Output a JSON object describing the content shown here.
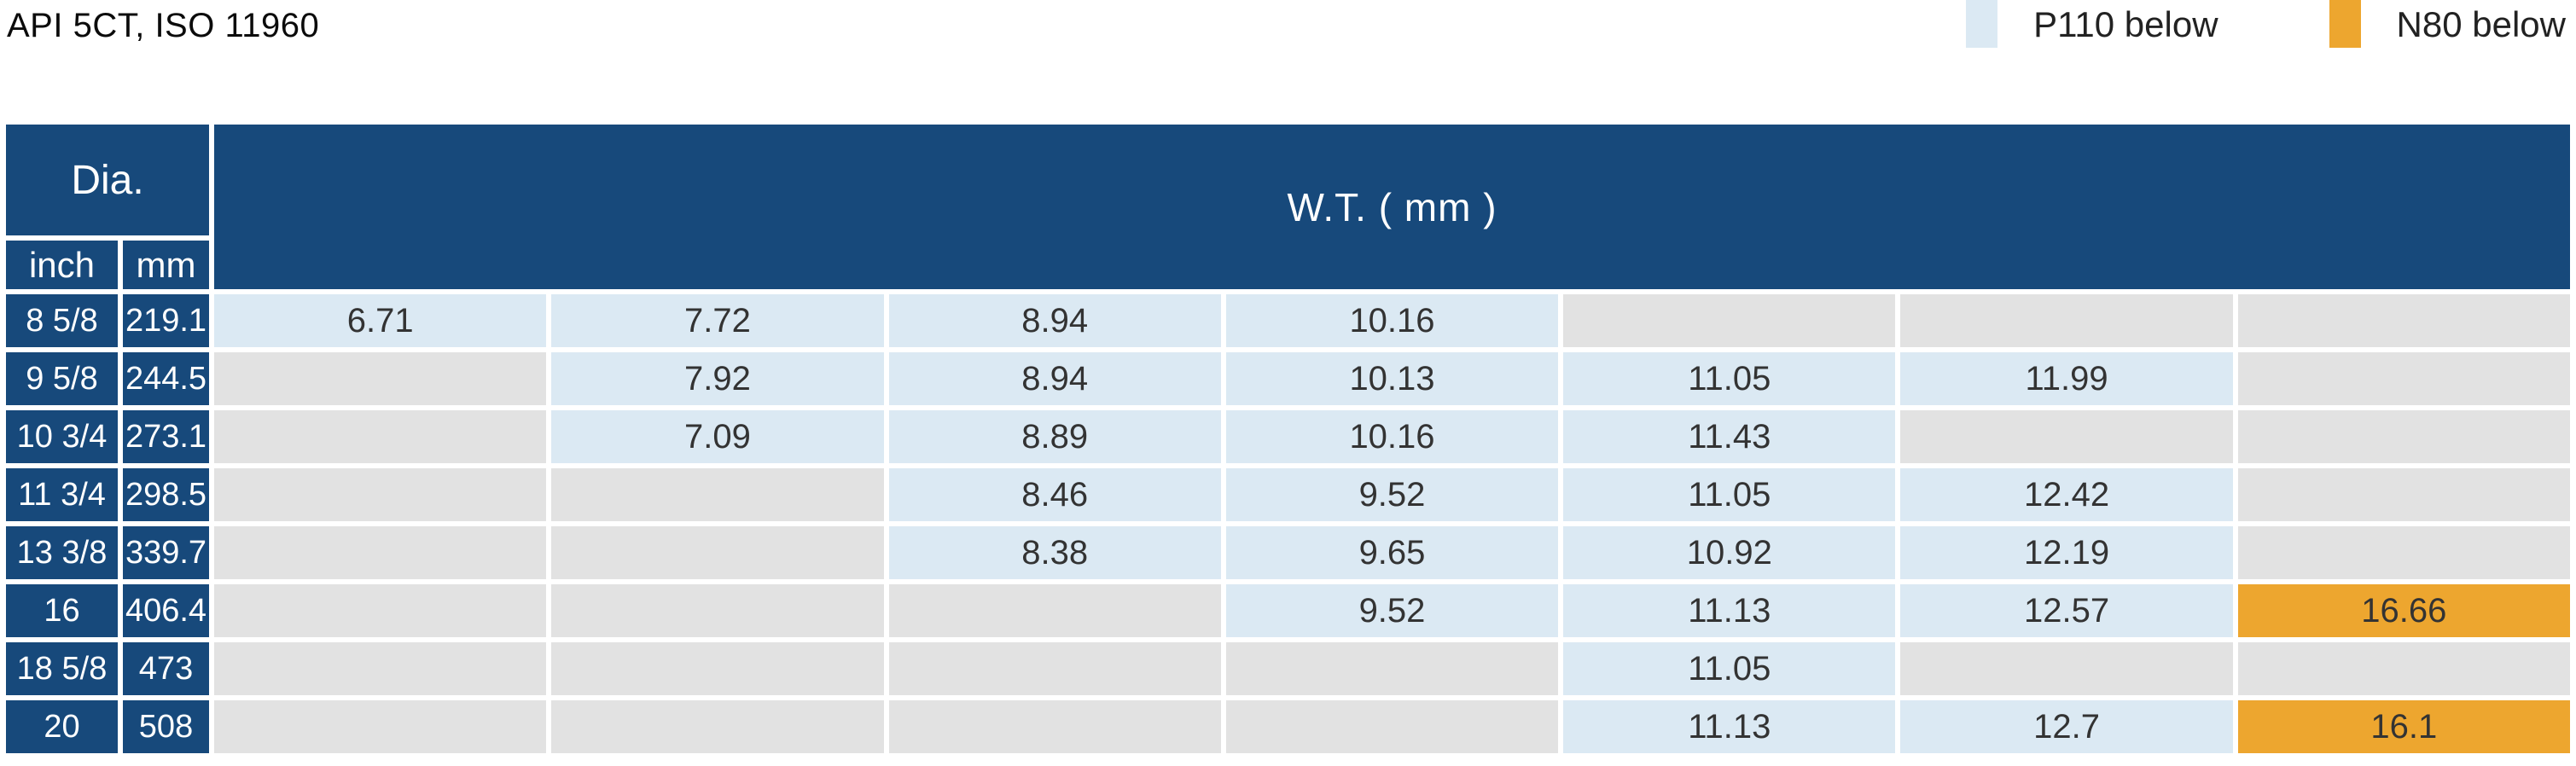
{
  "title": "API 5CT, ISO 11960",
  "legend": {
    "items": [
      {
        "label": "P110 below",
        "color": "#dbe9f3",
        "grade": "p110"
      },
      {
        "label": "N80 below",
        "color": "#eda62f",
        "grade": "n80"
      }
    ]
  },
  "table_headers": {
    "dia": "Dia.",
    "inch": "inch",
    "mm": "mm",
    "wt": "W.T. ( mm )"
  },
  "colors": {
    "navy": "#17497b",
    "p110": "#dbe9f3",
    "n80": "#eda62f",
    "empty": "#e2e2e2",
    "cell_text": "#333333",
    "page_bg": "#ffffff"
  },
  "chart_data": {
    "type": "table",
    "title": "API 5CT, ISO 11960",
    "legend": [
      {
        "label": "P110 below",
        "grade": "p110",
        "color": "#dbe9f3"
      },
      {
        "label": "N80 below",
        "grade": "n80",
        "color": "#eda62f"
      }
    ],
    "columns": {
      "row_header_group": "Dia.",
      "row_headers": [
        "inch",
        "mm"
      ],
      "value_group": "W.T. ( mm )",
      "wt_column_count": 7
    },
    "rows": [
      {
        "dia_inch": "8 5/8",
        "dia_mm": "219.1",
        "wt": [
          {
            "v": "6.71",
            "grade": "p110"
          },
          {
            "v": "7.72",
            "grade": "p110"
          },
          {
            "v": "8.94",
            "grade": "p110"
          },
          {
            "v": "10.16",
            "grade": "p110"
          },
          {
            "v": "",
            "grade": "none"
          },
          {
            "v": "",
            "grade": "none"
          },
          {
            "v": "",
            "grade": "none"
          }
        ]
      },
      {
        "dia_inch": "9 5/8",
        "dia_mm": "244.5",
        "wt": [
          {
            "v": "",
            "grade": "none"
          },
          {
            "v": "7.92",
            "grade": "p110"
          },
          {
            "v": "8.94",
            "grade": "p110"
          },
          {
            "v": "10.13",
            "grade": "p110"
          },
          {
            "v": "11.05",
            "grade": "p110"
          },
          {
            "v": "11.99",
            "grade": "p110"
          },
          {
            "v": "",
            "grade": "none"
          }
        ]
      },
      {
        "dia_inch": "10 3/4",
        "dia_mm": "273.1",
        "wt": [
          {
            "v": "",
            "grade": "none"
          },
          {
            "v": "7.09",
            "grade": "p110"
          },
          {
            "v": "8.89",
            "grade": "p110"
          },
          {
            "v": "10.16",
            "grade": "p110"
          },
          {
            "v": "11.43",
            "grade": "p110"
          },
          {
            "v": "",
            "grade": "none"
          },
          {
            "v": "",
            "grade": "none"
          }
        ]
      },
      {
        "dia_inch": "11 3/4",
        "dia_mm": "298.5",
        "wt": [
          {
            "v": "",
            "grade": "none"
          },
          {
            "v": "",
            "grade": "none"
          },
          {
            "v": "8.46",
            "grade": "p110"
          },
          {
            "v": "9.52",
            "grade": "p110"
          },
          {
            "v": "11.05",
            "grade": "p110"
          },
          {
            "v": "12.42",
            "grade": "p110"
          },
          {
            "v": "",
            "grade": "none"
          }
        ]
      },
      {
        "dia_inch": "13 3/8",
        "dia_mm": "339.7",
        "wt": [
          {
            "v": "",
            "grade": "none"
          },
          {
            "v": "",
            "grade": "none"
          },
          {
            "v": "8.38",
            "grade": "p110"
          },
          {
            "v": "9.65",
            "grade": "p110"
          },
          {
            "v": "10.92",
            "grade": "p110"
          },
          {
            "v": "12.19",
            "grade": "p110"
          },
          {
            "v": "",
            "grade": "none"
          }
        ]
      },
      {
        "dia_inch": "16",
        "dia_mm": "406.4",
        "wt": [
          {
            "v": "",
            "grade": "none"
          },
          {
            "v": "",
            "grade": "none"
          },
          {
            "v": "",
            "grade": "none"
          },
          {
            "v": "9.52",
            "grade": "p110"
          },
          {
            "v": "11.13",
            "grade": "p110"
          },
          {
            "v": "12.57",
            "grade": "p110"
          },
          {
            "v": "16.66",
            "grade": "n80"
          }
        ]
      },
      {
        "dia_inch": "18 5/8",
        "dia_mm": "473",
        "wt": [
          {
            "v": "",
            "grade": "none"
          },
          {
            "v": "",
            "grade": "none"
          },
          {
            "v": "",
            "grade": "none"
          },
          {
            "v": "",
            "grade": "none"
          },
          {
            "v": "11.05",
            "grade": "p110"
          },
          {
            "v": "",
            "grade": "none"
          },
          {
            "v": "",
            "grade": "none"
          }
        ]
      },
      {
        "dia_inch": "20",
        "dia_mm": "508",
        "wt": [
          {
            "v": "",
            "grade": "none"
          },
          {
            "v": "",
            "grade": "none"
          },
          {
            "v": "",
            "grade": "none"
          },
          {
            "v": "",
            "grade": "none"
          },
          {
            "v": "11.13",
            "grade": "p110"
          },
          {
            "v": "12.7",
            "grade": "p110"
          },
          {
            "v": "16.1",
            "grade": "n80"
          }
        ]
      }
    ]
  }
}
